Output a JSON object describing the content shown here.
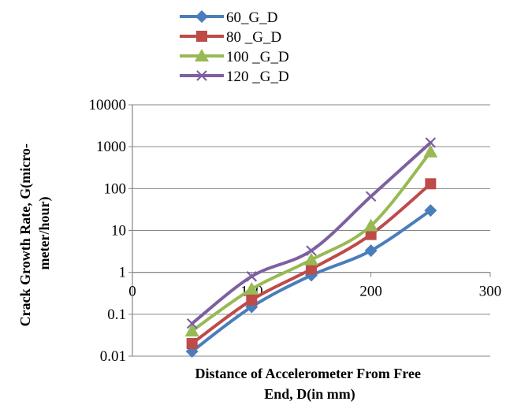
{
  "chart_data": {
    "type": "line",
    "xlabel_lines": [
      "Distance of Accelerometer From Free",
      "End, D(in mm)"
    ],
    "ylabel_lines": [
      "Crack Growth Rate, G(micro-",
      "meter/hour)"
    ],
    "x_ticks": [
      "0",
      "100",
      "200",
      "300"
    ],
    "y_ticks": [
      "0.01",
      "0.1",
      "1",
      "10",
      "100",
      "1000",
      "10000"
    ],
    "xlim": [
      0,
      300
    ],
    "ylim": [
      0.01,
      10000
    ],
    "y_scale": "log",
    "x_axis_crosses_y_at": 1,
    "grid": "horizontal",
    "legend_position": "top",
    "x": [
      50,
      100,
      150,
      200,
      250
    ],
    "series": [
      {
        "name": "60_G_D",
        "color": "#4a7ebb",
        "marker": "diamond",
        "values": [
          0.013,
          0.15,
          0.85,
          3.3,
          30
        ]
      },
      {
        "name": "80 _G_D",
        "color": "#be4b48",
        "marker": "square",
        "values": [
          0.02,
          0.22,
          1.2,
          8,
          130
        ]
      },
      {
        "name": "100 _G_D",
        "color": "#98b954",
        "marker": "triangle",
        "values": [
          0.04,
          0.4,
          2.0,
          13,
          750
        ]
      },
      {
        "name": "120 _G_D",
        "color": "#7d60a0",
        "marker": "x",
        "values": [
          0.06,
          0.8,
          3.3,
          65,
          1250
        ]
      }
    ]
  }
}
